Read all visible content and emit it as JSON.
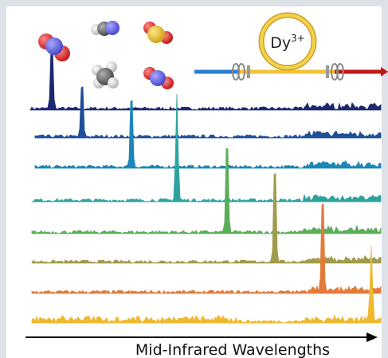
{
  "ion_label": {
    "base": "Dy",
    "superscript": "3+"
  },
  "axis_label": "Mid-Infrared Wavelengths"
}
